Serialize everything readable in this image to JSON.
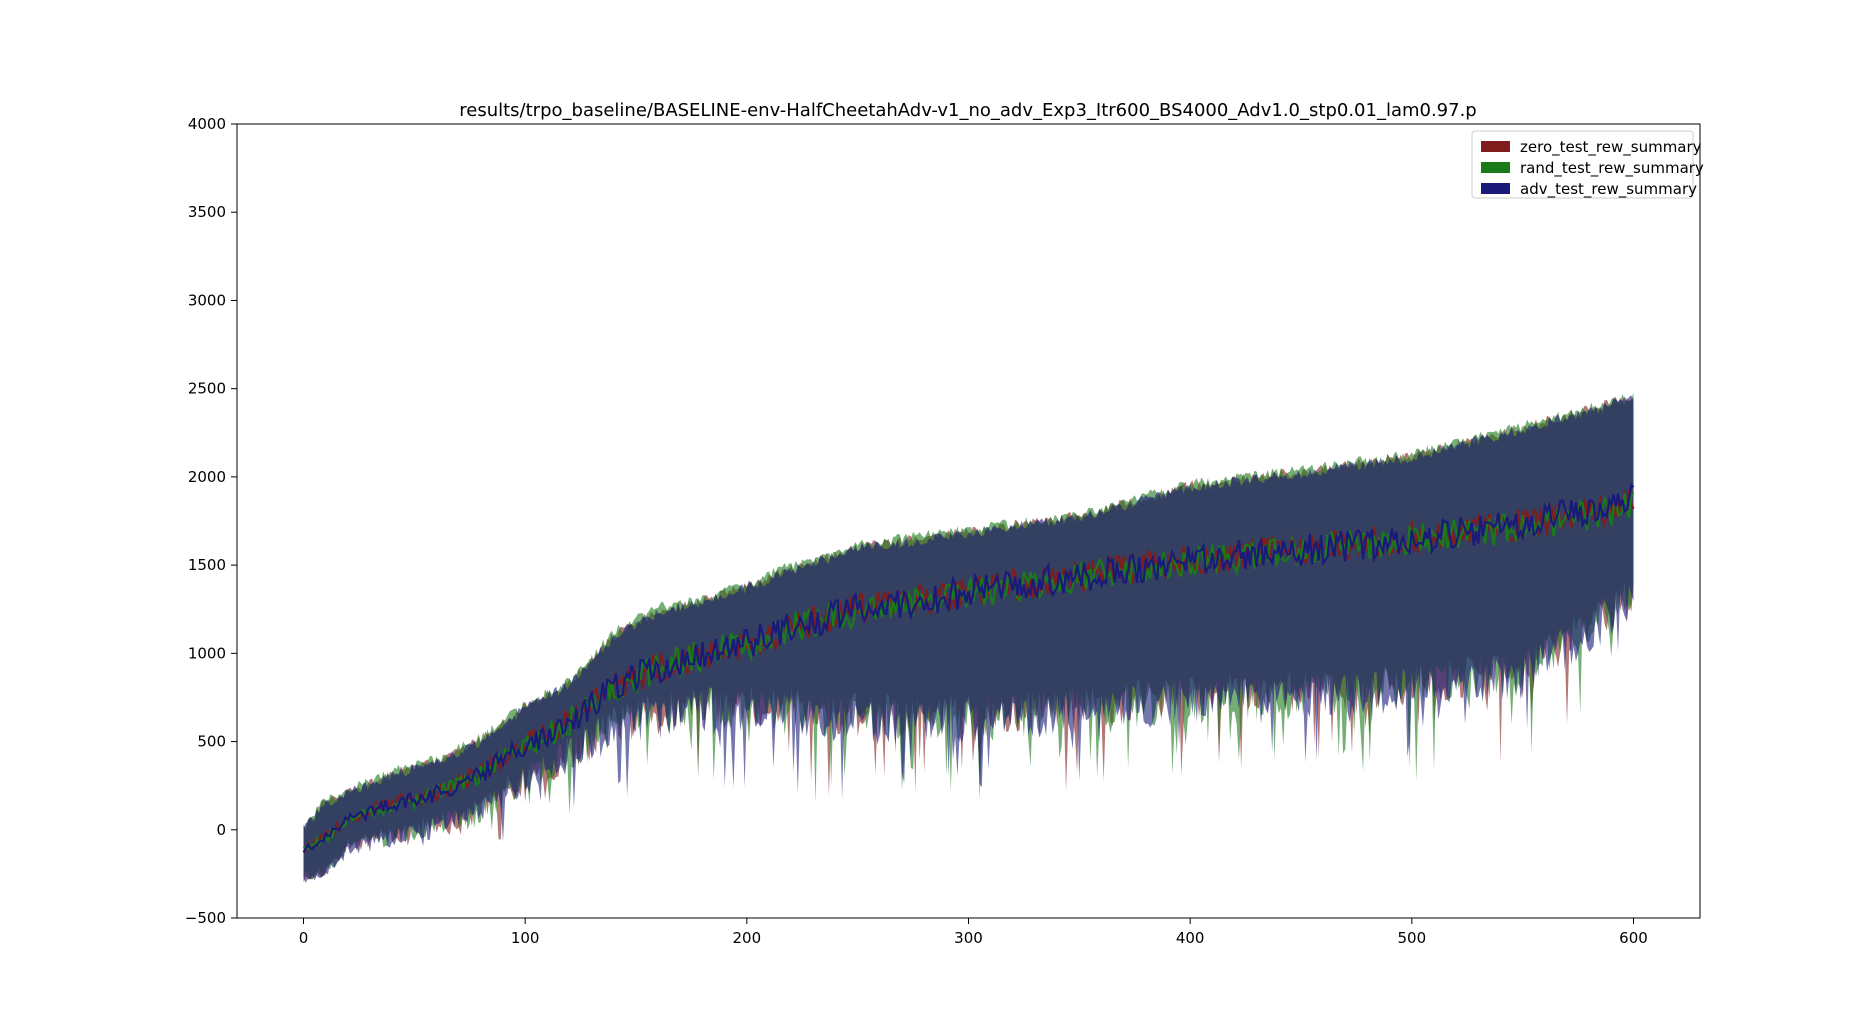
{
  "chart_data": {
    "type": "area",
    "title": "results/trpo_baseline/BASELINE-env-HalfCheetahAdv-v1_no_adv_Exp3_Itr600_BS4000_Adv1.0_stp0.01_lam0.97.p",
    "xlabel": "",
    "ylabel": "",
    "xlim": [
      -30,
      630
    ],
    "ylim": [
      -500,
      4000
    ],
    "xticks": [
      0,
      100,
      200,
      300,
      400,
      500,
      600
    ],
    "yticks": [
      -500,
      0,
      500,
      1000,
      1500,
      2000,
      2500,
      3000,
      3500,
      4000
    ],
    "xtick_labels": [
      "0",
      "100",
      "200",
      "300",
      "400",
      "500",
      "600"
    ],
    "ytick_labels": [
      "−500",
      "0",
      "500",
      "1000",
      "1500",
      "2000",
      "2500",
      "3000",
      "3500",
      "4000"
    ],
    "legend_position": "top-right",
    "x_keypoints": [
      0,
      10,
      20,
      40,
      60,
      80,
      100,
      120,
      140,
      160,
      180,
      200,
      220,
      250,
      300,
      350,
      400,
      450,
      500,
      550,
      600
    ],
    "series": [
      {
        "name": "zero_test_rew_summary",
        "color": "#7f1d1d",
        "mean": [
          -110,
          -40,
          60,
          150,
          210,
          320,
          480,
          620,
          800,
          930,
          1000,
          1060,
          1150,
          1250,
          1350,
          1440,
          1530,
          1590,
          1650,
          1730,
          1850
        ],
        "upper": [
          10,
          160,
          220,
          320,
          390,
          510,
          700,
          830,
          1100,
          1240,
          1300,
          1380,
          1480,
          1600,
          1690,
          1780,
          1950,
          2030,
          2120,
          2280,
          2450
        ],
        "lower": [
          -270,
          -230,
          -90,
          -30,
          40,
          110,
          300,
          430,
          600,
          650,
          700,
          700,
          680,
          650,
          650,
          700,
          750,
          780,
          820,
          900,
          1340
        ]
      },
      {
        "name": "rand_test_rew_summary",
        "color": "#1a7a1a",
        "mean": [
          -100,
          -50,
          50,
          140,
          200,
          310,
          470,
          610,
          790,
          920,
          990,
          1050,
          1140,
          1240,
          1340,
          1430,
          1520,
          1590,
          1640,
          1720,
          1830
        ],
        "upper": [
          20,
          170,
          230,
          330,
          400,
          520,
          710,
          840,
          1120,
          1260,
          1310,
          1390,
          1500,
          1620,
          1700,
          1790,
          1960,
          2040,
          2130,
          2290,
          2460
        ],
        "lower": [
          -260,
          -240,
          -100,
          -40,
          30,
          100,
          290,
          420,
          590,
          640,
          690,
          690,
          660,
          620,
          620,
          680,
          730,
          760,
          800,
          880,
          1320
        ]
      },
      {
        "name": "adv_test_rew_summary",
        "color": "#1a1a7a",
        "mean": [
          -120,
          -45,
          55,
          145,
          205,
          315,
          475,
          615,
          795,
          925,
          995,
          1055,
          1145,
          1245,
          1345,
          1435,
          1525,
          1585,
          1645,
          1725,
          1890
        ],
        "upper": [
          0,
          150,
          210,
          310,
          380,
          500,
          690,
          820,
          1090,
          1230,
          1290,
          1370,
          1470,
          1590,
          1680,
          1770,
          1940,
          2020,
          2110,
          2270,
          2440
        ],
        "lower": [
          -280,
          -250,
          -110,
          -50,
          20,
          90,
          280,
          410,
          580,
          630,
          680,
          680,
          650,
          610,
          610,
          670,
          720,
          750,
          790,
          870,
          1300
        ]
      }
    ]
  }
}
